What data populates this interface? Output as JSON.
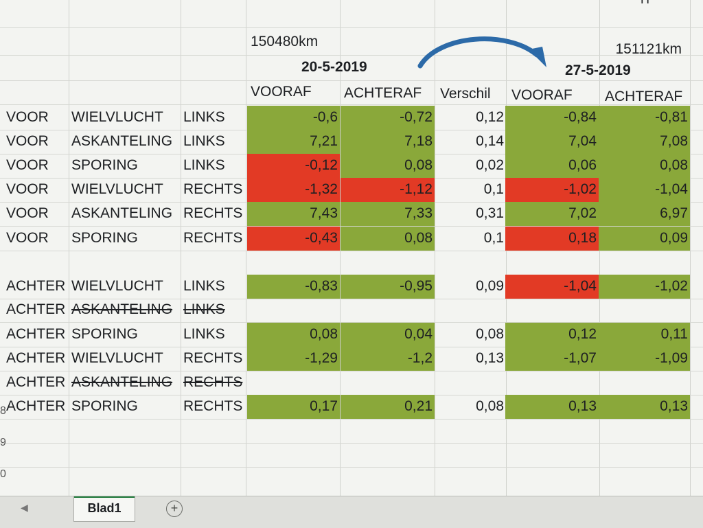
{
  "headers": {
    "km_before": "150480km",
    "km_after": "151121km",
    "date_before": "20-5-2019",
    "date_after": "27-5-2019",
    "col_vooraf_1": "VOORAF",
    "col_achteraf_1": "ACHTERAF",
    "col_verschil": "Verschil",
    "col_vooraf_2": "VOORAF",
    "col_achteraf_2": "ACHTERAF",
    "corner_letter": "H"
  },
  "rows": [
    {
      "pos": "VOOR",
      "meas": "WIELVLUCHT",
      "side": "LINKS",
      "v1": "-0,6",
      "a1": "-0,72",
      "d": "0,12",
      "v2": "-0,84",
      "a2": "-0,81"
    },
    {
      "pos": "VOOR",
      "meas": "ASKANTELING",
      "side": "LINKS",
      "v1": "7,21",
      "a1": "7,18",
      "d": "0,14",
      "v2": "7,04",
      "a2": "7,08"
    },
    {
      "pos": "VOOR",
      "meas": "SPORING",
      "side": "LINKS",
      "v1": "-0,12",
      "a1": "0,08",
      "d": "0,02",
      "v2": "0,06",
      "a2": "0,08"
    },
    {
      "pos": "VOOR",
      "meas": "WIELVLUCHT",
      "side": "RECHTS",
      "v1": "-1,32",
      "a1": "-1,12",
      "d": "0,1",
      "v2": "-1,02",
      "a2": "-1,04"
    },
    {
      "pos": "VOOR",
      "meas": "ASKANTELING",
      "side": "RECHTS",
      "v1": "7,43",
      "a1": "7,33",
      "d": "0,31",
      "v2": "7,02",
      "a2": "6,97"
    },
    {
      "pos": "VOOR",
      "meas": "SPORING",
      "side": "RECHTS",
      "v1": "-0,43",
      "a1": "0,08",
      "d": "0,1",
      "v2": "0,18",
      "a2": "0,09"
    },
    {
      "pos": "ACHTER",
      "meas": "WIELVLUCHT",
      "side": "LINKS",
      "v1": "-0,83",
      "a1": "-0,95",
      "d": "0,09",
      "v2": "-1,04",
      "a2": "-1,02"
    },
    {
      "pos": "ACHTER",
      "meas": "ASKANTELING",
      "side": "LINKS",
      "v1": "",
      "a1": "",
      "d": "",
      "v2": "",
      "a2": ""
    },
    {
      "pos": "ACHTER",
      "meas": "SPORING",
      "side": "LINKS",
      "v1": "0,08",
      "a1": "0,04",
      "d": "0,08",
      "v2": "0,12",
      "a2": "0,11"
    },
    {
      "pos": "ACHTER",
      "meas": "WIELVLUCHT",
      "side": "RECHTS",
      "v1": "-1,29",
      "a1": "-1,2",
      "d": "0,13",
      "v2": "-1,07",
      "a2": "-1,09"
    },
    {
      "pos": "ACHTER",
      "meas": "ASKANTELING",
      "side": "RECHTS",
      "v1": "",
      "a1": "",
      "d": "",
      "v2": "",
      "a2": ""
    },
    {
      "pos": "ACHTER",
      "meas": "SPORING",
      "side": "RECHTS",
      "v1": "0,17",
      "a1": "0,21",
      "d": "0,08",
      "v2": "0,13",
      "a2": "0,13"
    }
  ],
  "row_numbers": [
    "8",
    "9",
    "0"
  ],
  "tabs": {
    "sheet_name": "Blad1",
    "add_symbol": "+",
    "nav_symbol": "◀"
  },
  "colors": {
    "ok": "#8aa83a",
    "bad": "#e23a25",
    "arrow": "#2c6aa8"
  }
}
